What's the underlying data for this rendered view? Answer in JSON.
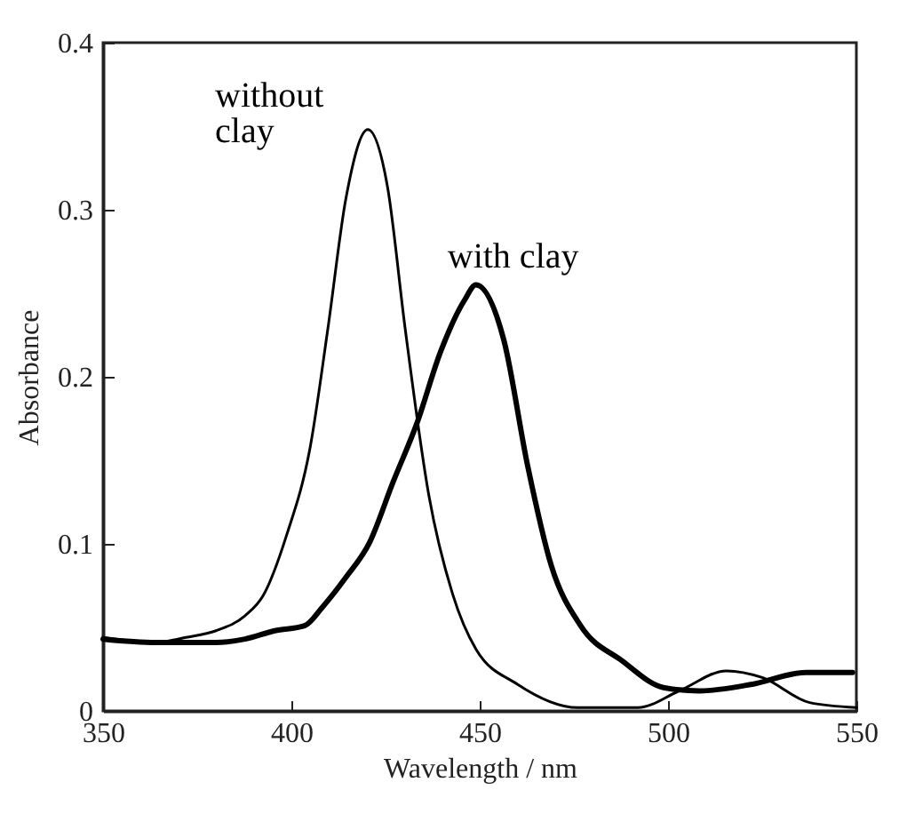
{
  "chart_data": {
    "type": "line",
    "xlabel": "Wavelength / nm",
    "ylabel": "Absorbance",
    "xlim": [
      350,
      550
    ],
    "ylim": [
      0,
      0.4
    ],
    "xticks": [
      350,
      400,
      450,
      500,
      550
    ],
    "yticks": [
      0,
      0.1,
      0.2,
      0.3,
      0.4
    ],
    "grid": false,
    "legend": false,
    "line_style": "solid",
    "marker": "none",
    "series": [
      {
        "name": "without clay",
        "color": "#000000",
        "x": [
          350,
          364,
          372,
          380,
          387.7,
          392.5,
          398.7,
          405,
          409.7,
          414.5,
          420.3,
          425.5,
          430.2,
          436.5,
          442.8,
          449,
          460,
          476,
          492,
          503,
          515.5,
          525,
          537.6,
          550
        ],
        "values": [
          0.044,
          0.041,
          0.044,
          0.048,
          0.057,
          0.069,
          0.105,
          0.158,
          0.229,
          0.307,
          0.348,
          0.314,
          0.229,
          0.129,
          0.07,
          0.037,
          0.016,
          0.002,
          0.002,
          0.012,
          0.024,
          0.02,
          0.005,
          0.002
        ]
      },
      {
        "name": "with clay",
        "color": "#000000",
        "x": [
          350,
          364,
          380,
          387.7,
          395.6,
          403.5,
          408.2,
          414.5,
          420.8,
          427,
          433.3,
          439.6,
          446,
          449,
          456.4,
          462.7,
          469,
          476.8,
          487.8,
          498.8,
          508.3,
          522.4,
          536.6,
          549
        ],
        "values": [
          0.043,
          0.041,
          0.041,
          0.043,
          0.048,
          0.051,
          0.062,
          0.08,
          0.101,
          0.137,
          0.172,
          0.215,
          0.246,
          0.255,
          0.222,
          0.147,
          0.087,
          0.051,
          0.03,
          0.014,
          0.012,
          0.016,
          0.023,
          0.023
        ]
      }
    ]
  }
}
